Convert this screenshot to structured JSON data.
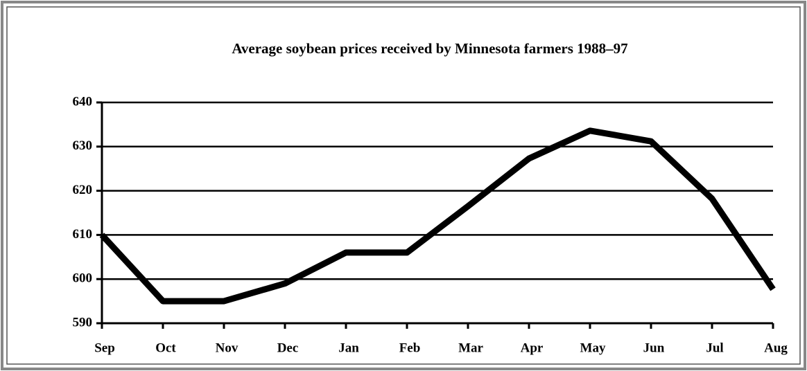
{
  "chart_data": {
    "type": "line",
    "title": "Average soybean prices received by Minnesota farmers  1988–97",
    "categories": [
      "Sep",
      "Oct",
      "Nov",
      "Dec",
      "Jan",
      "Feb",
      "Mar",
      "Apr",
      "May",
      "Jun",
      "Jul",
      "Aug"
    ],
    "values": [
      610,
      595,
      595,
      599,
      606,
      606,
      616.5,
      627.3,
      633.6,
      631.2,
      618.2,
      597.7
    ],
    "color": "#000000",
    "ylim": [
      590,
      640
    ],
    "yticks": [
      590,
      600,
      610,
      620,
      630,
      640
    ],
    "grid": true
  }
}
